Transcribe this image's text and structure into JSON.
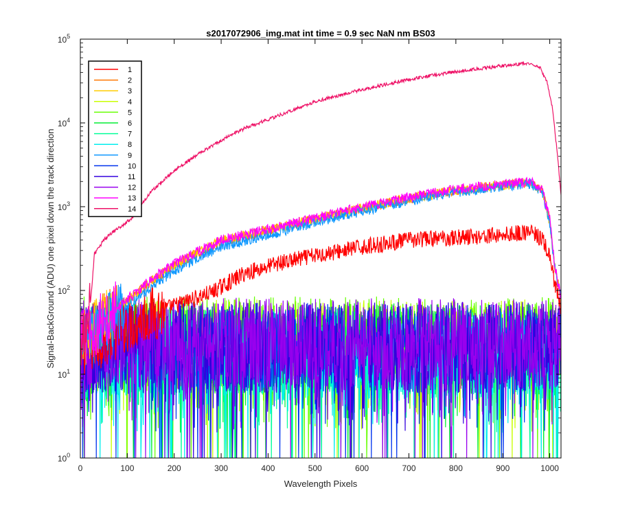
{
  "chart_data": {
    "type": "line",
    "title": "s2017072906_img.mat int time = 0.9 sec  NaN nm BS03",
    "xlabel": "Wavelength Pixels",
    "ylabel": "Signal-BackGround (ADU) one pixel down the track direction",
    "xlim": [
      0,
      1024
    ],
    "ylim": [
      1,
      100000
    ],
    "yscale": "log",
    "grid": false,
    "legend_position": "top-left",
    "x_ticks": [
      "0",
      "100",
      "200",
      "300",
      "400",
      "500",
      "600",
      "700",
      "800",
      "900",
      "1000"
    ],
    "y_tick_base": "10",
    "y_tick_exponents": [
      "0",
      "1",
      "2",
      "3",
      "4",
      "5"
    ],
    "series": [
      {
        "name": "1",
        "color": "#ff0000",
        "kind": "signal",
        "anchors": [
          [
            0,
            20
          ],
          [
            40,
            25
          ],
          [
            100,
            40
          ],
          [
            160,
            55
          ],
          [
            220,
            72
          ],
          [
            280,
            95
          ],
          [
            350,
            160
          ],
          [
            420,
            210
          ],
          [
            500,
            260
          ],
          [
            600,
            330
          ],
          [
            700,
            400
          ],
          [
            800,
            430
          ],
          [
            900,
            460
          ],
          [
            960,
            500
          ],
          [
            985,
            400
          ],
          [
            1000,
            250
          ],
          [
            1010,
            120
          ],
          [
            1024,
            60
          ]
        ],
        "noise": 0.1
      },
      {
        "name": "2",
        "color": "#ff7700",
        "kind": "signal",
        "anchors": [
          [
            0,
            25
          ],
          [
            40,
            40
          ],
          [
            100,
            75
          ],
          [
            160,
            140
          ],
          [
            220,
            230
          ],
          [
            300,
            380
          ],
          [
            400,
            520
          ],
          [
            500,
            700
          ],
          [
            600,
            950
          ],
          [
            700,
            1250
          ],
          [
            800,
            1550
          ],
          [
            900,
            1800
          ],
          [
            960,
            1950
          ],
          [
            985,
            1500
          ],
          [
            1000,
            700
          ],
          [
            1010,
            200
          ],
          [
            1024,
            80
          ]
        ],
        "noise": 0.06
      },
      {
        "name": "3",
        "color": "#ffcc00",
        "kind": "signal",
        "anchors": [
          [
            0,
            25
          ],
          [
            40,
            40
          ],
          [
            100,
            75
          ],
          [
            160,
            145
          ],
          [
            220,
            235
          ],
          [
            300,
            390
          ],
          [
            400,
            530
          ],
          [
            500,
            710
          ],
          [
            600,
            960
          ],
          [
            700,
            1260
          ],
          [
            800,
            1560
          ],
          [
            900,
            1800
          ],
          [
            960,
            1940
          ],
          [
            985,
            1450
          ],
          [
            1000,
            650
          ],
          [
            1010,
            200
          ],
          [
            1024,
            80
          ]
        ],
        "noise": 0.06
      },
      {
        "name": "4",
        "color": "#c8ff00",
        "kind": "noise",
        "level": 22
      },
      {
        "name": "5",
        "color": "#66ff00",
        "kind": "noise",
        "level": 24
      },
      {
        "name": "6",
        "color": "#00ee33",
        "kind": "noise",
        "level": 20
      },
      {
        "name": "7",
        "color": "#00ff99",
        "kind": "noise",
        "level": 18
      },
      {
        "name": "8",
        "color": "#00eeee",
        "kind": "noise",
        "level": 17
      },
      {
        "name": "9",
        "color": "#1199ff",
        "kind": "signal",
        "anchors": [
          [
            0,
            22
          ],
          [
            40,
            35
          ],
          [
            100,
            65
          ],
          [
            160,
            120
          ],
          [
            220,
            200
          ],
          [
            300,
            330
          ],
          [
            400,
            460
          ],
          [
            500,
            640
          ],
          [
            600,
            880
          ],
          [
            700,
            1180
          ],
          [
            800,
            1480
          ],
          [
            900,
            1750
          ],
          [
            960,
            1900
          ],
          [
            985,
            1450
          ],
          [
            1000,
            650
          ],
          [
            1010,
            200
          ],
          [
            1024,
            80
          ]
        ],
        "noise": 0.06
      },
      {
        "name": "10",
        "color": "#0033ee",
        "kind": "noise",
        "level": 20
      },
      {
        "name": "11",
        "color": "#3300dd",
        "kind": "noise",
        "level": 21
      },
      {
        "name": "12",
        "color": "#9900ee",
        "kind": "noise",
        "level": 23
      },
      {
        "name": "13",
        "color": "#ff00ff",
        "kind": "signal",
        "anchors": [
          [
            0,
            25
          ],
          [
            40,
            40
          ],
          [
            100,
            78
          ],
          [
            160,
            150
          ],
          [
            220,
            240
          ],
          [
            300,
            400
          ],
          [
            400,
            540
          ],
          [
            500,
            730
          ],
          [
            600,
            990
          ],
          [
            700,
            1300
          ],
          [
            800,
            1600
          ],
          [
            900,
            1850
          ],
          [
            960,
            2000
          ],
          [
            985,
            1550
          ],
          [
            1000,
            720
          ],
          [
            1010,
            210
          ],
          [
            1024,
            80
          ]
        ],
        "noise": 0.06
      },
      {
        "name": "14",
        "color": "#ee1166",
        "kind": "signal",
        "anchors": [
          [
            0,
            20
          ],
          [
            15,
            30
          ],
          [
            25,
            120
          ],
          [
            30,
            270
          ],
          [
            50,
            400
          ],
          [
            70,
            500
          ],
          [
            90,
            600
          ],
          [
            110,
            740
          ],
          [
            150,
            1500
          ],
          [
            200,
            2700
          ],
          [
            250,
            4200
          ],
          [
            300,
            6200
          ],
          [
            350,
            8600
          ],
          [
            400,
            11000
          ],
          [
            450,
            14000
          ],
          [
            500,
            18000
          ],
          [
            600,
            25000
          ],
          [
            700,
            33000
          ],
          [
            800,
            41000
          ],
          [
            900,
            48000
          ],
          [
            960,
            52000
          ],
          [
            980,
            45000
          ],
          [
            995,
            30000
          ],
          [
            1005,
            16000
          ],
          [
            1015,
            5000
          ],
          [
            1024,
            1400
          ]
        ],
        "noise": 0.02
      }
    ]
  }
}
